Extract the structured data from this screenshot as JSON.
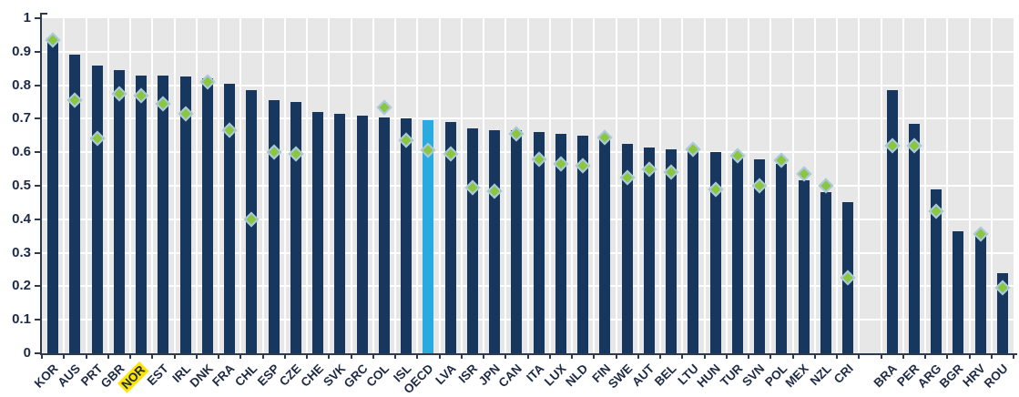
{
  "colors": {
    "bar": "#17375e",
    "accent_bar": "#29abe2",
    "marker_fill": "#8cc63f",
    "marker_border": "#aac8e4",
    "plot_background": "#e7e7e7",
    "gridline": "#ffffff",
    "axis": "#2e3a4e",
    "tick_label": "#1e2a45",
    "highlight_label_background": "#ffe500"
  },
  "chart_data": {
    "type": "bar",
    "title": "",
    "xlabel": "",
    "ylabel": "",
    "ylim": [
      0,
      1
    ],
    "grid": true,
    "legend_position": "none",
    "yticks": [
      "0",
      "0.1",
      "0.2",
      "0.3",
      "0.4",
      "0.5",
      "0.6",
      "0.7",
      "0.8",
      "0.9",
      "1"
    ],
    "categories": [
      "KOR",
      "AUS",
      "PRT",
      "GBR",
      "NOR",
      "EST",
      "IRL",
      "DNK",
      "FRA",
      "CHL",
      "ESP",
      "CZE",
      "CHE",
      "SVK",
      "GRC",
      "COL",
      "ISL",
      "OECD",
      "LVA",
      "ISR",
      "JPN",
      "CAN",
      "ITA",
      "LUX",
      "NLD",
      "FIN",
      "SWE",
      "AUT",
      "BEL",
      "LTU",
      "HUN",
      "TUR",
      "SVN",
      "POL",
      "MEX",
      "NZL",
      "CRI",
      "BRA",
      "PER",
      "ARG",
      "BGR",
      "HRV",
      "ROU"
    ],
    "gap_after_index": 36,
    "accent_category": "OECD",
    "highlighted_tick_label": "NOR",
    "series": [
      {
        "name": "bars",
        "type": "bar",
        "values": [
          0.94,
          0.89,
          0.86,
          0.845,
          0.83,
          0.83,
          0.825,
          0.82,
          0.805,
          0.785,
          0.755,
          0.75,
          0.72,
          0.715,
          0.71,
          0.705,
          0.7,
          0.695,
          0.69,
          0.67,
          0.665,
          0.665,
          0.66,
          0.655,
          0.65,
          0.645,
          0.625,
          0.615,
          0.61,
          0.605,
          0.6,
          0.585,
          0.58,
          0.565,
          0.515,
          0.48,
          0.45,
          0.785,
          0.685,
          0.49,
          0.365,
          0.36,
          0.24
        ]
      },
      {
        "name": "diamond-markers",
        "type": "scatter",
        "marker": "diamond",
        "values": [
          0.935,
          0.755,
          0.64,
          0.775,
          0.77,
          0.745,
          0.715,
          0.81,
          0.665,
          0.4,
          0.6,
          0.595,
          null,
          null,
          null,
          0.735,
          0.635,
          0.605,
          0.595,
          0.495,
          0.485,
          0.655,
          0.58,
          0.565,
          0.56,
          0.645,
          0.525,
          0.55,
          0.54,
          0.61,
          0.49,
          0.59,
          0.5,
          0.575,
          0.535,
          0.5,
          0.225,
          0.62,
          0.62,
          0.425,
          null,
          0.355,
          0.195
        ]
      }
    ]
  }
}
